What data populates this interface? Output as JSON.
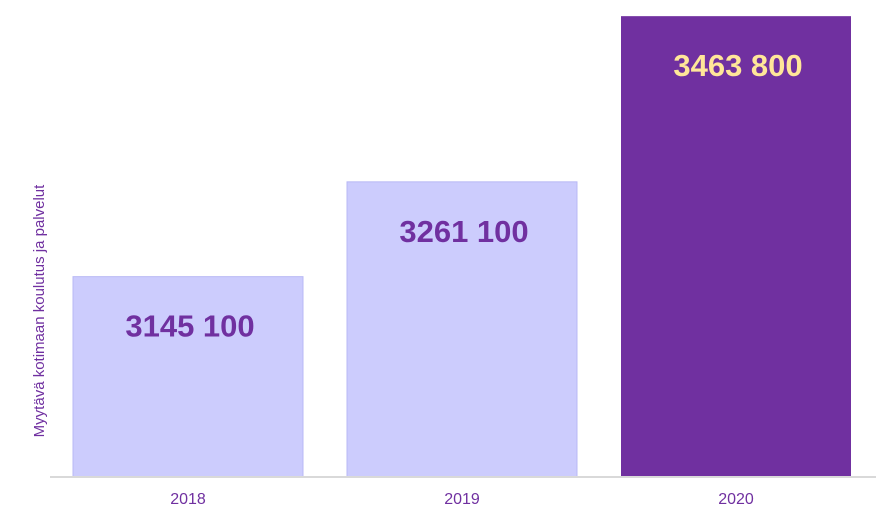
{
  "chart_data": {
    "type": "bar",
    "categories": [
      "2018",
      "2019",
      "2020"
    ],
    "values": [
      3145100,
      3261100,
      3463800
    ],
    "value_labels": [
      "3145 100",
      "3261 100",
      "3463 800"
    ],
    "title": "",
    "xlabel": "",
    "ylabel": "Myytävä kotimaan koulutus ja palvelut",
    "ylim": [
      2900000,
      3475000
    ],
    "grid": false,
    "legend": "none",
    "colors": {
      "bar_light": "#ccccfd",
      "bar_light_border": "#b8b8f5",
      "bar_dark": "#7030a0",
      "label_on_light": "#7030a0",
      "label_on_dark": "#ffe699",
      "axis_text": "#7030a0",
      "baseline": "#d9d9d9"
    }
  }
}
